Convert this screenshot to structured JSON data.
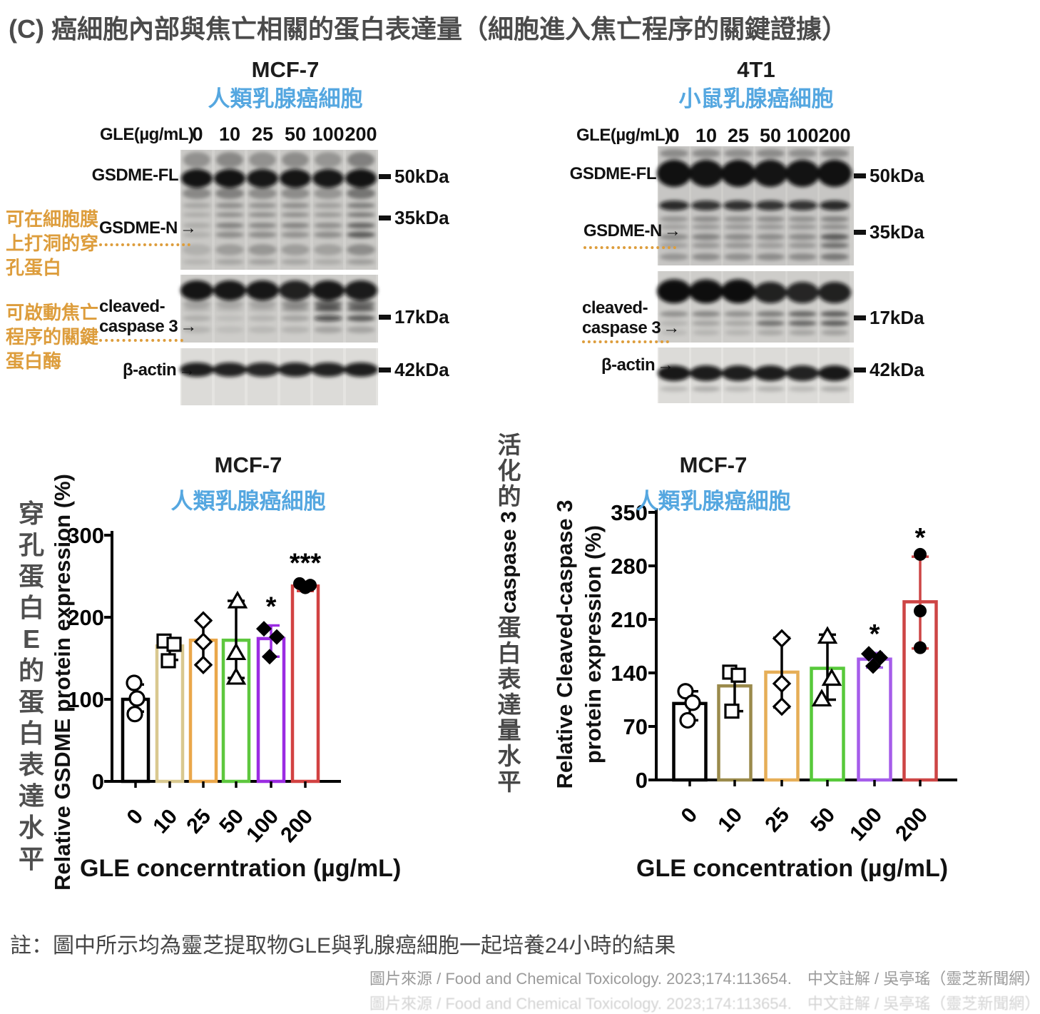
{
  "title": "(C) 癌細胞內部與焦亡相關的蛋白表達量（細胞進入焦亡程序的關鍵證據）",
  "ui": {
    "arrow_right": "→"
  },
  "blot_section": {
    "panels": [
      {
        "name": "MCF-7",
        "name_zh": "人類乳腺癌細胞",
        "gle_label": "GLE(µg/mL)",
        "doses": [
          "0",
          "10",
          "25",
          "50",
          "100",
          "200"
        ],
        "rows": [
          {
            "label": "GSDME-FL",
            "marker": "50kDa"
          },
          {
            "label": "GSDME-N",
            "marker": "35kDa"
          },
          {
            "label_line1": "cleaved-",
            "label_line2": "caspase 3",
            "marker": "17kDa"
          },
          {
            "label": "β-actin",
            "marker": "42kDa"
          }
        ]
      },
      {
        "name": "4T1",
        "name_zh": "小鼠乳腺癌細胞",
        "gle_label": "GLE(µg/mL)",
        "doses": [
          "0",
          "10",
          "25",
          "50",
          "100",
          "200"
        ],
        "rows": [
          {
            "label": "GSDME-FL",
            "marker": "50kDa"
          },
          {
            "label": "GSDME-N",
            "marker": "35kDa"
          },
          {
            "label_line1": "cleaved-",
            "label_line2": "caspase 3",
            "marker": "17kDa"
          },
          {
            "label": "β-actin",
            "marker": "42kDa"
          }
        ]
      }
    ],
    "annotations": [
      {
        "lines": [
          "可在細胞膜",
          "上打洞的穿",
          "孔蛋白"
        ]
      },
      {
        "lines": [
          "可啟動焦亡",
          "程序的關鍵",
          "蛋白酶"
        ]
      }
    ]
  },
  "side_labels": {
    "left_vertical": "穿孔蛋白E的蛋白表達水平",
    "mid_prefix": "活化的",
    "mid_latin": "caspase 3",
    "mid_suffix": "蛋白表達量水平"
  },
  "chart_data": [
    {
      "type": "bar",
      "title": "MCF-7",
      "subtitle": "人類乳腺癌細胞",
      "ylabel": "Relative GSDME protein expression (%)",
      "xlabel": "GLE concerntration (µg/mL)",
      "categories": [
        "0",
        "10",
        "25",
        "50",
        "100",
        "200"
      ],
      "values": [
        100,
        165,
        172,
        172,
        174,
        238
      ],
      "error_low": [
        85,
        148,
        142,
        126,
        152,
        232
      ],
      "error_high": [
        118,
        172,
        196,
        220,
        190,
        243
      ],
      "points": [
        [
          120,
          101,
          82
        ],
        [
          171,
          167,
          147
        ],
        [
          196,
          170,
          142
        ],
        [
          220,
          157,
          127
        ],
        [
          186,
          176,
          152
        ],
        [
          241,
          236,
          239
        ]
      ],
      "significance": [
        "",
        "",
        "",
        "",
        "*",
        "***"
      ],
      "bar_colors": [
        "#000000",
        "#d9c88f",
        "#eaa74a",
        "#5ec73e",
        "#9b2ce2",
        "#d24242"
      ],
      "error_colors": [
        "#000000",
        "#000000",
        "#000000",
        "#000000",
        "#9b2ce2",
        "#d24242"
      ],
      "point_shapes": [
        "circle-open",
        "square-open",
        "diamond-open",
        "triangle-open",
        "diamond-filled",
        "circle-filled"
      ],
      "ylim": [
        0,
        300
      ],
      "yticks": [
        0,
        100,
        200,
        300
      ],
      "legend": "none",
      "grid": false
    },
    {
      "type": "bar",
      "title": "MCF-7",
      "subtitle": "人類乳腺癌細胞",
      "ylabel_lines": [
        "Relative Cleaved-caspase 3",
        "protein expression (%)"
      ],
      "xlabel": "GLE concentration (µg/mL)",
      "categories": [
        "0",
        "10",
        "25",
        "50",
        "100",
        "200"
      ],
      "values": [
        100,
        123,
        141,
        146,
        158,
        233
      ],
      "error_low": [
        78,
        90,
        95,
        105,
        147,
        172
      ],
      "error_high": [
        116,
        140,
        186,
        190,
        166,
        292
      ],
      "points": [
        [
          116,
          101,
          78
        ],
        [
          141,
          137,
          90
        ],
        [
          185,
          126,
          96
        ],
        [
          188,
          133,
          106
        ],
        [
          165,
          160,
          149
        ],
        [
          295,
          221,
          173
        ]
      ],
      "significance": [
        "",
        "",
        "",
        "",
        "*",
        "*"
      ],
      "bar_colors": [
        "#000000",
        "#9a8a4b",
        "#e6ae57",
        "#57c93a",
        "#a55cea",
        "#cd4545"
      ],
      "error_colors": [
        "#000000",
        "#000000",
        "#000000",
        "#000000",
        "#a55cea",
        "#cd4545"
      ],
      "point_shapes": [
        "circle-open",
        "square-open",
        "diamond-open",
        "triangle-open",
        "diamond-filled",
        "circle-filled"
      ],
      "ylim": [
        0,
        350
      ],
      "yticks": [
        0,
        70,
        140,
        210,
        280,
        350
      ],
      "legend": "none",
      "grid": false
    }
  ],
  "footer": {
    "note": "註：圖中所示均為靈芝提取物GLE與乳腺癌細胞一起培養24小時的結果",
    "credit": "圖片來源 / Food and Chemical Toxicology. 2023;174:113654.　中文註解 / 吳亭瑤（靈芝新聞網）"
  }
}
